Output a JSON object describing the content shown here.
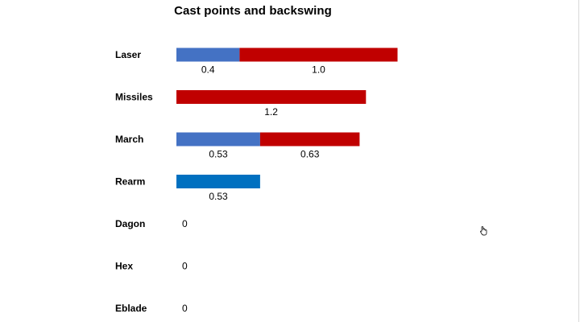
{
  "colors": {
    "cast_point": "#4472c4",
    "backswing": "#c00000",
    "rearm": "#0070c0",
    "text": "#000000"
  },
  "icons": {
    "cursor": "hand-cursor-icon"
  },
  "chart_data": {
    "type": "bar",
    "orientation": "horizontal",
    "stacked": true,
    "title": "Cast points and backswing",
    "xlabel": "",
    "ylabel": "",
    "xlim": [
      0,
      1.53
    ],
    "grid": false,
    "categories": [
      "Laser",
      "Missiles",
      "March",
      "Rearm",
      "Dagon",
      "Hex",
      "Eblade"
    ],
    "series": [
      {
        "color": "#4472c4",
        "values": [
          0.4,
          0,
          0.53,
          0,
          0,
          0,
          0
        ],
        "labels": [
          "0.4",
          "",
          "0.53",
          "",
          "0",
          "0",
          "0"
        ]
      },
      {
        "color": "#c00000",
        "values": [
          1.0,
          1.2,
          0.63,
          0,
          0,
          0,
          0
        ],
        "labels": [
          "1.0",
          "1.2",
          "0.63",
          "",
          "",
          "",
          ""
        ]
      },
      {
        "color": "#0070c0",
        "values": [
          0,
          0,
          0,
          0.53,
          0,
          0,
          0
        ],
        "labels": [
          "",
          "",
          "",
          "0.53",
          "",
          "",
          ""
        ]
      }
    ]
  }
}
